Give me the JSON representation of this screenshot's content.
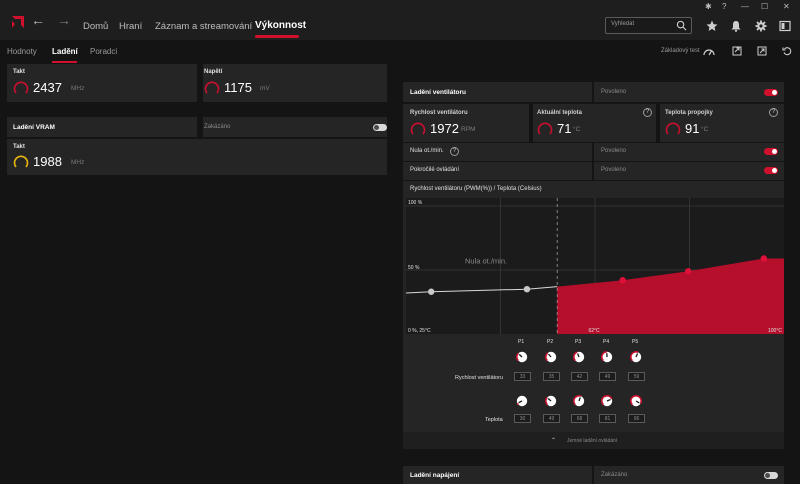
{
  "nav": {
    "home": "Domů",
    "gaming": "Hraní",
    "record": "Záznam a streamování",
    "performance": "Výkonnost",
    "search_placeholder": "Vyhledat"
  },
  "subnav": {
    "metrics": "Hodnoty",
    "tuning": "Ladění",
    "advisors": "Poradci",
    "profile": "Základový test"
  },
  "left": {
    "gpu": {
      "clock_label": "Takt",
      "clock_value": "2437",
      "clock_unit": "MHz",
      "voltage_label": "Napětí",
      "voltage_value": "1175",
      "voltage_unit": "mV"
    },
    "vram": {
      "title": "Ladění VRAM",
      "state": "Zakázáno",
      "clock_label": "Takt",
      "clock_value": "1988",
      "clock_unit": "MHz"
    }
  },
  "fan": {
    "title": "Ladění ventilátoru",
    "state": "Povoleno",
    "speed_label": "Rychlost ventilátoru",
    "speed_value": "1972",
    "speed_unit": "RPM",
    "temp_label": "Aktuální teplota",
    "temp_value": "71",
    "temp_unit": "°C",
    "junction_label": "Teplota propojky",
    "junction_value": "91",
    "junction_unit": "°C",
    "zero_rpm_label": "Nula ot./min.",
    "zero_rpm_state": "Povoleno",
    "advanced_label": "Pokročilé ovládání",
    "advanced_state": "Povoleno",
    "curve_title": "Rychlost ventilátoru (PWM(%)) / Teplota (Celsius)",
    "fine_control": "Jemné ladění ovládání",
    "speed_row_label": "Rychlost ventilátoru",
    "temp_row_label": "Teplota",
    "points": [
      {
        "name": "P1",
        "speed": "33",
        "temp": "30"
      },
      {
        "name": "P2",
        "speed": "35",
        "temp": "49"
      },
      {
        "name": "P3",
        "speed": "42",
        "temp": "68"
      },
      {
        "name": "P4",
        "speed": "49",
        "temp": "81"
      },
      {
        "name": "P5",
        "speed": "59",
        "temp": "96"
      }
    ]
  },
  "power": {
    "title": "Ladění napájení",
    "state": "Zakázáno"
  },
  "chart_data": {
    "type": "area",
    "title": "Rychlost ventilátoru (PWM(%)) / Teplota (Celsius)",
    "ylim": [
      0,
      100
    ],
    "y_tick_labels": [
      "100 %",
      "50 %",
      "0 %, 25°C"
    ],
    "x_tick_labels": [
      "62°C",
      "100°C"
    ],
    "annotation": "Nula ot./min.",
    "series": [
      {
        "values": [
          {
            "x": 25,
            "y": 32
          },
          {
            "x": 30,
            "y": 33
          },
          {
            "x": 49,
            "y": 35
          },
          {
            "x": 55,
            "y": 37
          },
          {
            "x": 68,
            "y": 42
          },
          {
            "x": 81,
            "y": 49
          },
          {
            "x": 96,
            "y": 59
          },
          {
            "x": 100,
            "y": 59
          }
        ]
      }
    ],
    "zero_rpm_until": 55,
    "fill_color": "#b50f2c",
    "grid": true
  }
}
